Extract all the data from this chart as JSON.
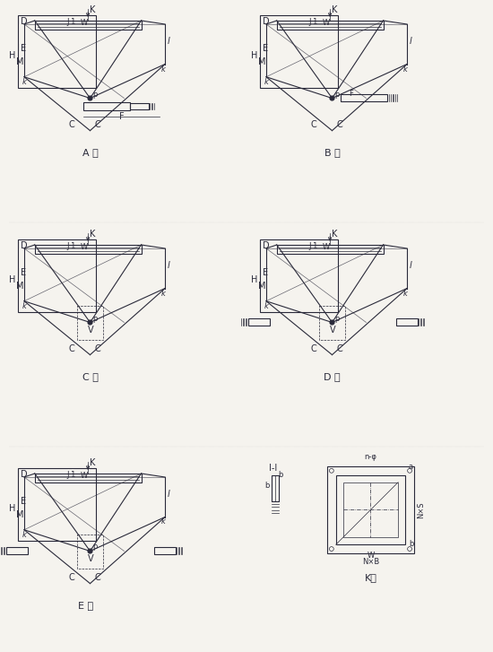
{
  "bg_color": "#f5f3ee",
  "line_color": "#2a2a3a",
  "dim_color": "#2a2a3a",
  "title_A": "A 型",
  "title_B": "B 型",
  "title_C": "C 型",
  "title_D": "D 型",
  "title_E": "K向",
  "title_F": "I-I",
  "font_size_label": 7,
  "font_size_title": 8
}
